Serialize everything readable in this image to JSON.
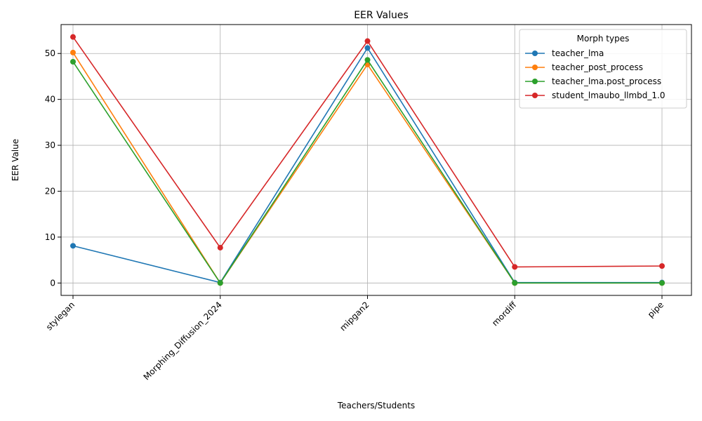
{
  "chart_data": {
    "type": "line",
    "title": "EER Values",
    "xlabel": "Teachers/Students",
    "ylabel": "EER Value",
    "categories": [
      "stylegan",
      "Morphing_Diffusion_2024",
      "mipgan2",
      "mordiff",
      "pipe"
    ],
    "ylim": [
      -2.7,
      56.3
    ],
    "yticks": [
      0,
      10,
      20,
      30,
      40,
      50
    ],
    "grid": true,
    "legend": {
      "title": "Morph types",
      "placement": "top-right"
    },
    "series": [
      {
        "name": "teacher_lma",
        "color": "#1f77b4",
        "values": [
          8.1,
          0.1,
          51.2,
          0.1,
          0.1
        ]
      },
      {
        "name": "teacher_post_process",
        "color": "#ff7f0e",
        "values": [
          50.2,
          0.0,
          47.6,
          0.0,
          0.0
        ]
      },
      {
        "name": "teacher_lma.post_process",
        "color": "#2ca02c",
        "values": [
          48.2,
          0.0,
          48.6,
          0.0,
          0.0
        ]
      },
      {
        "name": "student_lmaubo_llmbd_1.0",
        "color": "#d62728",
        "values": [
          53.6,
          7.7,
          52.7,
          3.5,
          3.7
        ]
      }
    ]
  }
}
